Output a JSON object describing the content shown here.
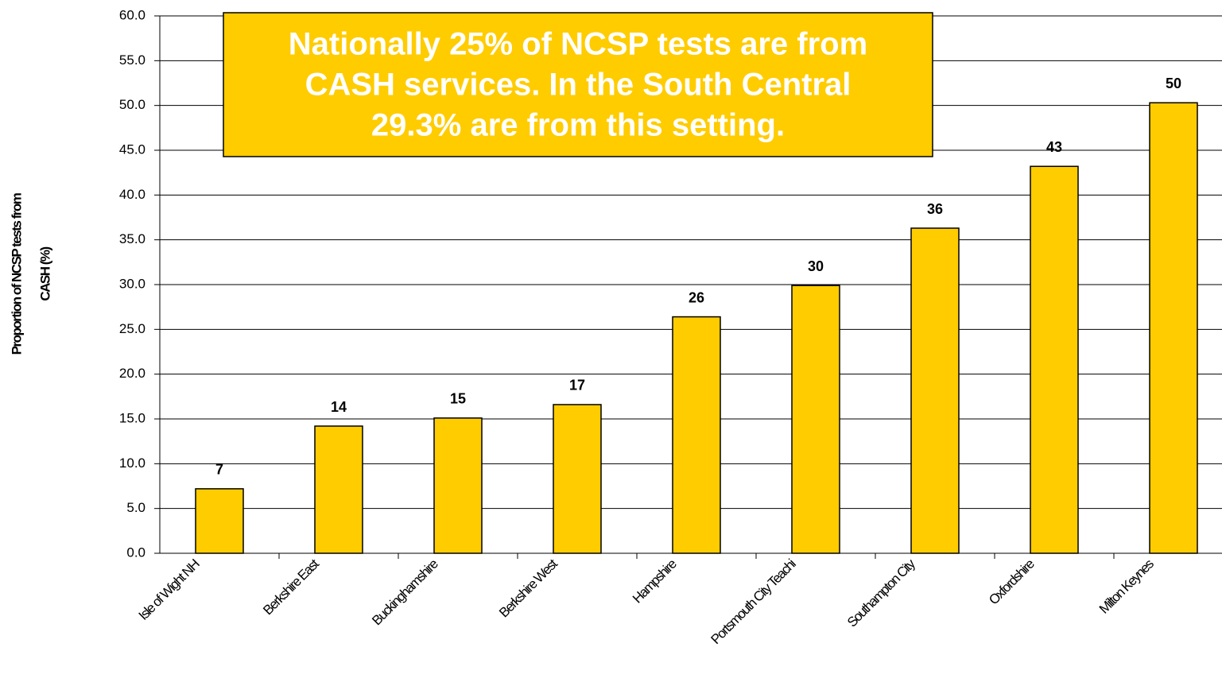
{
  "chart_data": {
    "type": "bar",
    "annotation": [
      "Nationally 25% of NCSP tests are from",
      "CASH services.  In the South Central",
      "29.3% are from this setting."
    ],
    "y_label": [
      "Proportion of NCSP tests from",
      "CASH (%)"
    ],
    "categories": [
      "Isle of Wight NH",
      "Berkshire East",
      "Buckinghamshire",
      "Berkshire West",
      "Hampshire",
      "Portsmouth City Teachi",
      "Southampton City",
      "Oxfordshire",
      "Milton Keynes"
    ],
    "values": [
      7.2,
      14.2,
      15.1,
      16.6,
      26.4,
      29.9,
      36.3,
      43.2,
      50.3
    ],
    "value_labels": [
      "7",
      "14",
      "15",
      "17",
      "26",
      "30",
      "36",
      "43",
      "50"
    ],
    "color": "#FFCC00",
    "ylim": [
      0,
      60
    ],
    "yticks": [
      {
        "value": 0,
        "label": "0.0"
      },
      {
        "value": 5,
        "label": "5.0"
      },
      {
        "value": 10,
        "label": "10.0"
      },
      {
        "value": 15,
        "label": "15.0"
      },
      {
        "value": 20,
        "label": "20.0"
      },
      {
        "value": 25,
        "label": "25.0"
      },
      {
        "value": 30,
        "label": "30.0"
      },
      {
        "value": 35,
        "label": "35.0"
      },
      {
        "value": 40,
        "label": "40.0"
      },
      {
        "value": 45,
        "label": "45.0"
      },
      {
        "value": 50,
        "label": "50.0"
      },
      {
        "value": 55,
        "label": "55.0"
      },
      {
        "value": 60,
        "label": "60.0"
      }
    ],
    "grid": true
  }
}
